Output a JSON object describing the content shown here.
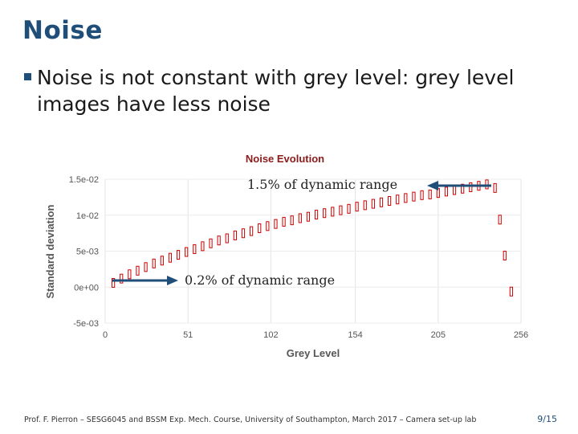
{
  "slide": {
    "title": "Noise",
    "bullet": "Noise is not constant with grey level: grey level images have less noise",
    "footer": "Prof. F. Pierron – SESG6045 and BSSM Exp. Mech. Course, University of Southampton, March 2017 – Camera set-up lab",
    "page": "9/15",
    "annotation_top": "1.5% of dynamic range",
    "annotation_bottom": "0.2% of dynamic range"
  },
  "colors": {
    "title": "#1f4e79",
    "series": "#cc0000",
    "arrow": "#1f4e79",
    "axis_text": "#555555",
    "chart_title": "#8b1a1a"
  },
  "chart_data": {
    "type": "bar",
    "title": "Noise Evolution",
    "xlabel": "Grey Level",
    "ylabel": "Standard deviation",
    "xlim": [
      0,
      256
    ],
    "ylim": [
      -0.005,
      0.015
    ],
    "xticks": [
      "0",
      "51",
      "102",
      "154",
      "205",
      "256"
    ],
    "yticks": [
      "-5e-03",
      "0e+00",
      "5e-03",
      "1e-02",
      "1.5e-02"
    ],
    "xtick_values": [
      0,
      51,
      102,
      154,
      205,
      256
    ],
    "ytick_values": [
      -0.005,
      0,
      0.005,
      0.01,
      0.015
    ],
    "grid": "vertical",
    "series": [
      {
        "x": [
          5,
          10,
          15,
          20,
          25,
          30,
          35,
          40,
          45,
          50,
          55,
          60,
          65,
          70,
          75,
          80,
          85,
          90,
          95,
          100,
          105,
          110,
          115,
          120,
          125,
          130,
          135,
          140,
          145,
          150,
          155,
          160,
          165,
          170,
          175,
          180,
          185,
          190,
          195,
          200,
          205,
          210,
          215,
          220,
          225,
          230,
          235,
          240,
          243,
          246,
          250
        ],
        "y": [
          0.0012,
          0.0018,
          0.0024,
          0.0029,
          0.0034,
          0.0039,
          0.0043,
          0.0047,
          0.0051,
          0.0055,
          0.0059,
          0.0063,
          0.0067,
          0.0071,
          0.0074,
          0.0078,
          0.0081,
          0.0084,
          0.0088,
          0.0091,
          0.0094,
          0.0097,
          0.0099,
          0.0102,
          0.0104,
          0.0107,
          0.0109,
          0.0111,
          0.0113,
          0.0115,
          0.0118,
          0.012,
          0.0122,
          0.0124,
          0.0126,
          0.0128,
          0.013,
          0.0132,
          0.0134,
          0.0135,
          0.0137,
          0.0139,
          0.0141,
          0.0143,
          0.0145,
          0.0147,
          0.0149,
          0.0144,
          0.01,
          0.005,
          0.0
        ]
      }
    ]
  }
}
